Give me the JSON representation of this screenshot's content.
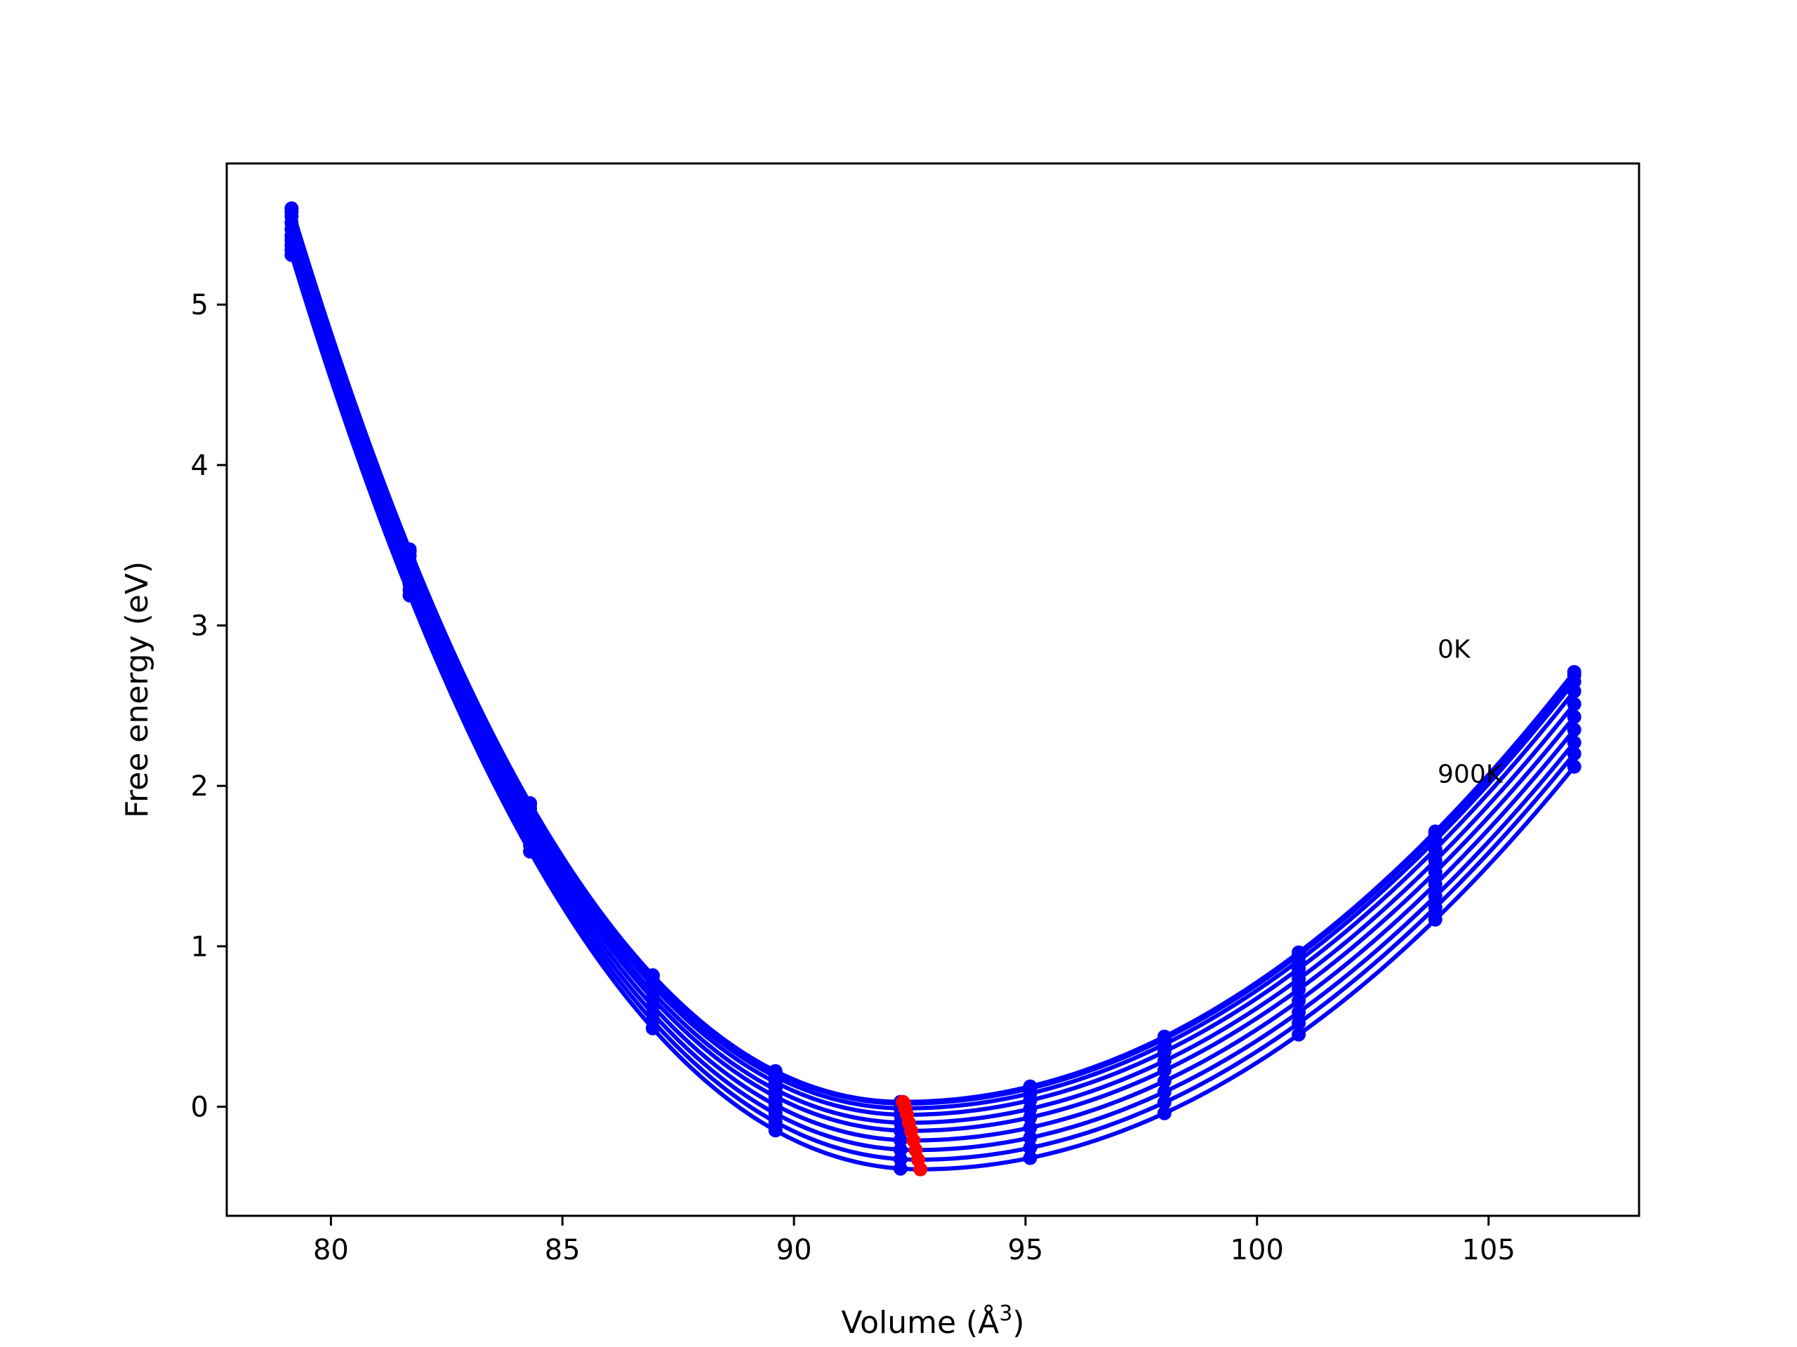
{
  "chart_data": {
    "type": "line",
    "title": "",
    "xlabel": "Volume (Å",
    "xlabel_sup": "3",
    "xlabel_close": ")",
    "ylabel": "Free energy (eV)",
    "xlim": [
      77.75,
      108.25
    ],
    "ylim": [
      -0.68,
      5.88
    ],
    "x_ticks": [
      80,
      85,
      90,
      95,
      100,
      105
    ],
    "y_ticks": [
      0,
      1,
      2,
      3,
      4,
      5
    ],
    "x_tick_labels": [
      "80",
      "85",
      "90",
      "95",
      100,
      105
    ],
    "y_tick_labels": [
      "0",
      "1",
      "2",
      "3",
      "4",
      "5"
    ],
    "grid": false,
    "legend": "none",
    "sample_volumes": [
      79.15,
      81.7,
      84.3,
      86.95,
      89.6,
      92.3,
      95.1,
      98.0,
      100.9,
      103.85,
      106.85
    ],
    "series": [
      {
        "temperature_K": 0,
        "V0": 92.35,
        "E_min": 0.03,
        "E_left": 5.6,
        "E_right": 2.71
      },
      {
        "temperature_K": 100,
        "V0": 92.38,
        "E_min": 0.02,
        "E_left": 5.58,
        "E_right": 2.69
      },
      {
        "temperature_K": 200,
        "V0": 92.4,
        "E_min": -0.01,
        "E_left": 5.55,
        "E_right": 2.65
      },
      {
        "temperature_K": 300,
        "V0": 92.44,
        "E_min": -0.05,
        "E_left": 5.51,
        "E_right": 2.59
      },
      {
        "temperature_K": 400,
        "V0": 92.48,
        "E_min": -0.1,
        "E_left": 5.47,
        "E_right": 2.51
      },
      {
        "temperature_K": 500,
        "V0": 92.53,
        "E_min": -0.15,
        "E_left": 5.43,
        "E_right": 2.43
      },
      {
        "temperature_K": 600,
        "V0": 92.58,
        "E_min": -0.21,
        "E_left": 5.4,
        "E_right": 2.35
      },
      {
        "temperature_K": 700,
        "V0": 92.63,
        "E_min": -0.27,
        "E_left": 5.37,
        "E_right": 2.27
      },
      {
        "temperature_K": 800,
        "V0": 92.68,
        "E_min": -0.33,
        "E_left": 5.34,
        "E_right": 2.2
      },
      {
        "temperature_K": 900,
        "V0": 92.73,
        "E_min": -0.39,
        "E_left": 5.31,
        "E_right": 2.12
      }
    ],
    "minima_color": "#ff0000",
    "curve_color": "#0000ff",
    "annotations": [
      {
        "text": "0K",
        "x": 103.9,
        "y": 2.8
      },
      {
        "text": "900K",
        "x": 103.9,
        "y": 2.02
      }
    ]
  }
}
